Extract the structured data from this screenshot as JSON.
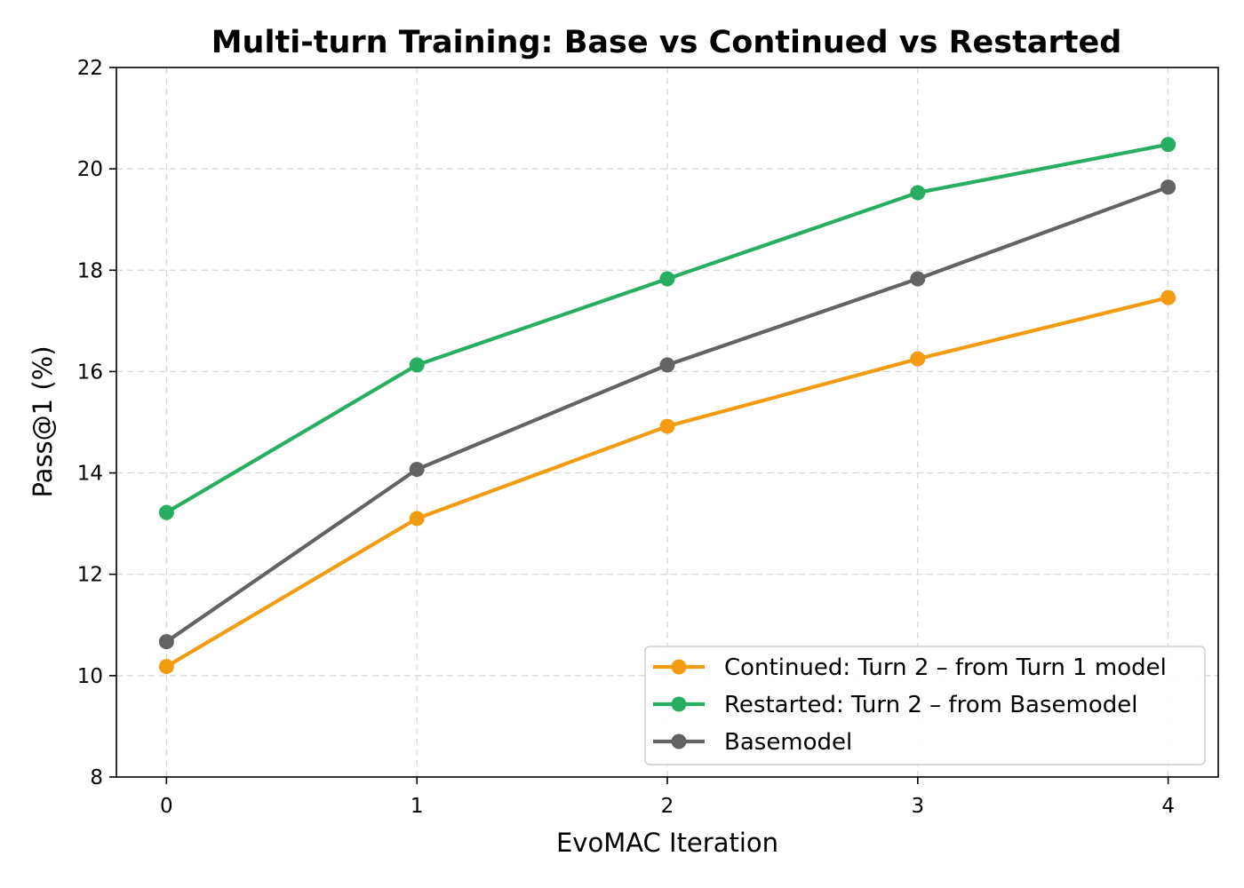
{
  "chart_data": {
    "type": "line",
    "title": "Multi-turn Training: Base vs Continued vs Restarted",
    "xlabel": "EvoMAC Iteration",
    "ylabel": "Pass@1 (%)",
    "x": [
      0,
      1,
      2,
      3,
      4
    ],
    "xlim": [
      -0.2,
      4.2
    ],
    "ylim": [
      8,
      22
    ],
    "xticks": [
      "0",
      "1",
      "2",
      "3",
      "4"
    ],
    "yticks": [
      "8",
      "10",
      "12",
      "14",
      "16",
      "18",
      "20",
      "22"
    ],
    "grid": true,
    "legend_position": "bottom-right",
    "series": [
      {
        "name": "Continued: Turn 2 – from Turn 1 model",
        "color": "#f39c12",
        "values": [
          10.18,
          13.1,
          14.92,
          16.25,
          17.46
        ]
      },
      {
        "name": "Restarted: Turn 2 – from Basemodel",
        "color": "#27ae60",
        "values": [
          13.22,
          16.13,
          17.83,
          19.53,
          20.48
        ]
      },
      {
        "name": "Basemodel",
        "color": "#636363",
        "values": [
          10.67,
          14.07,
          16.13,
          17.83,
          19.64
        ]
      }
    ]
  }
}
